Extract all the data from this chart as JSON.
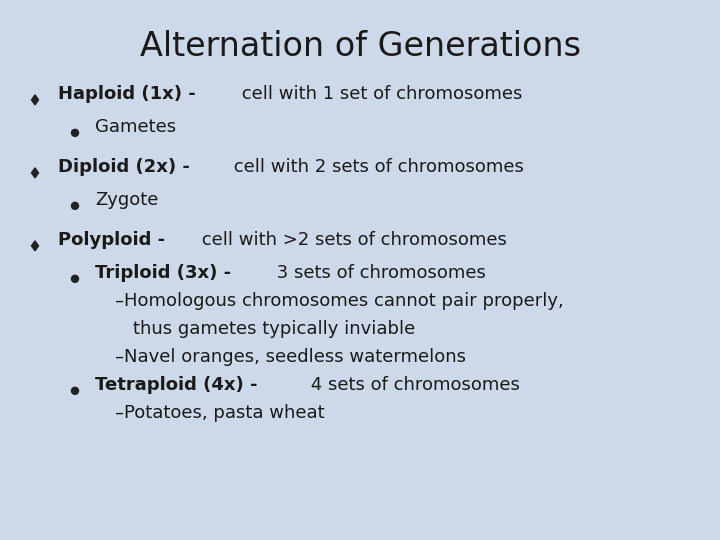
{
  "title": "Alternation of Generations",
  "bg_color": "#cdd8e8",
  "title_color": "#1a1a1a",
  "text_color": "#1a1a1a",
  "title_fontsize": 24,
  "body_fontsize": 13,
  "lines": [
    {
      "type": "bullet1",
      "bold": "Haploid (1x) -",
      "normal": " cell with 1 set of chromosomes"
    },
    {
      "type": "bullet2",
      "bold": "",
      "normal": "Gametes"
    },
    {
      "type": "spacer"
    },
    {
      "type": "bullet1",
      "bold": "Diploid (2x) -",
      "normal": " cell with 2 sets of chromosomes"
    },
    {
      "type": "bullet2",
      "bold": "",
      "normal": "Zygote"
    },
    {
      "type": "spacer"
    },
    {
      "type": "bullet1",
      "bold": "Polyploid -",
      "normal": " cell with >2 sets of chromosomes"
    },
    {
      "type": "bullet2",
      "bold": "Triploid (3x) -",
      "normal": " 3 sets of chromosomes"
    },
    {
      "type": "bullet3",
      "bold": "",
      "normal": "–Homologous chromosomes cannot pair properly,"
    },
    {
      "type": "bullet3_cont",
      "bold": "",
      "normal": "thus gametes typically inviable"
    },
    {
      "type": "bullet3",
      "bold": "",
      "normal": "–Navel oranges, seedless watermelons"
    },
    {
      "type": "bullet2",
      "bold": "Tetraploid (4x) -",
      "normal": " 4 sets of chromosomes"
    },
    {
      "type": "bullet3",
      "bold": "",
      "normal": "–Potatoes, pasta wheat"
    }
  ]
}
